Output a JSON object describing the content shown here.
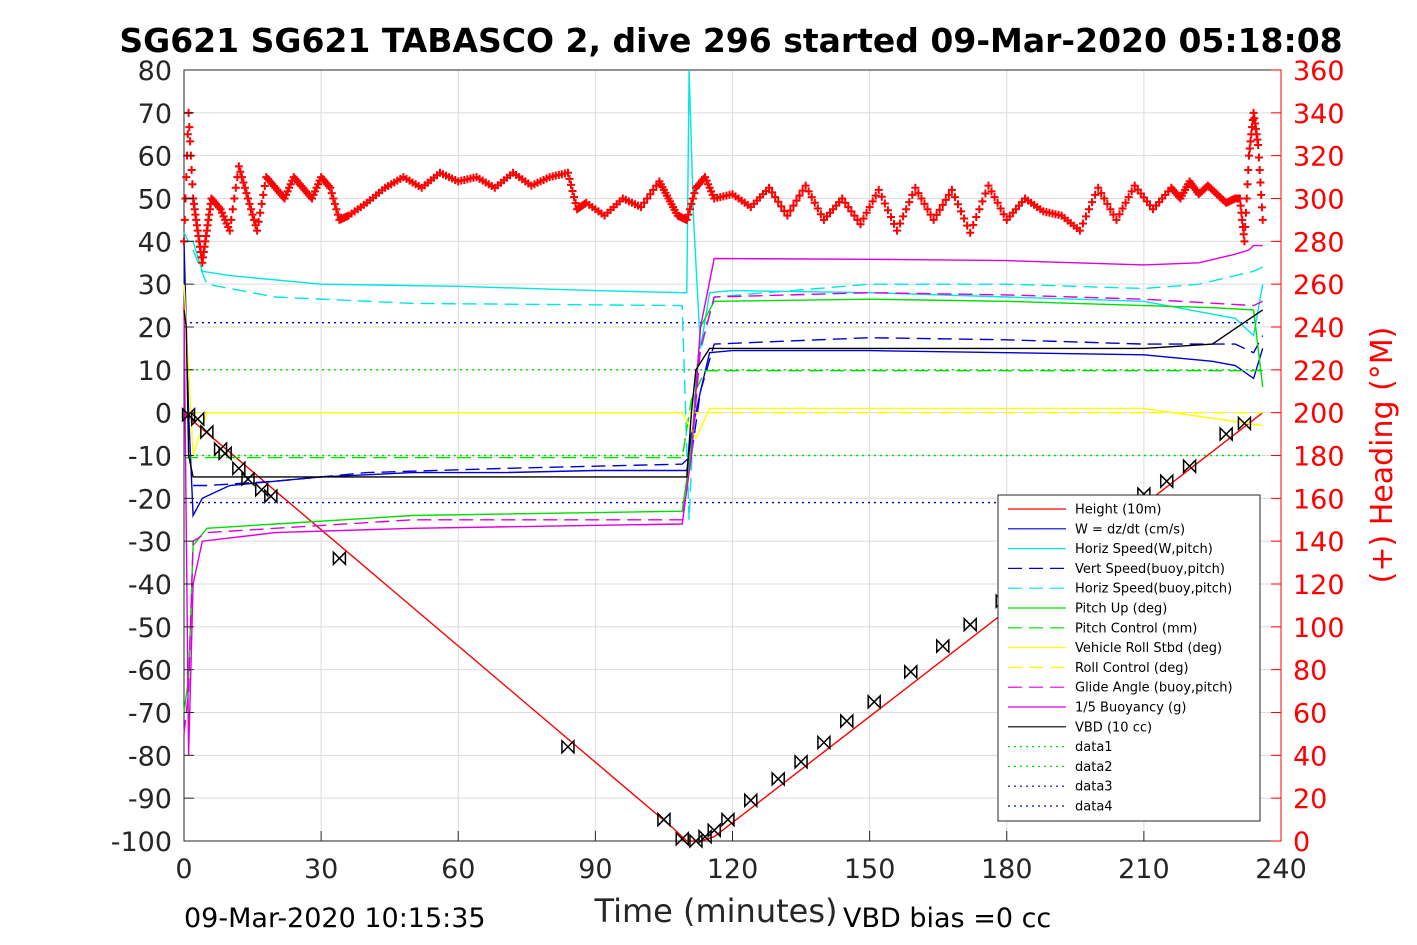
{
  "chart_data": {
    "type": "line",
    "title": "SG621 SG621 TABASCO 2, dive 296 started 09-Mar-2020 05:18:08",
    "xlabel": "Time (minutes)",
    "ylabel_left": "",
    "ylabel_right": "(+) Heading (°M)",
    "xlim": [
      0,
      240
    ],
    "ylim_left": [
      -100,
      80
    ],
    "ylim_right": [
      0,
      360
    ],
    "x_ticks": [
      "0",
      "30",
      "60",
      "90",
      "120",
      "150",
      "180",
      "210",
      "240"
    ],
    "y_ticks_left": [
      "80",
      "70",
      "60",
      "50",
      "40",
      "30",
      "20",
      "10",
      "0",
      "-10",
      "-20",
      "-30",
      "-40",
      "-50",
      "-60",
      "-70",
      "-80",
      "-90",
      "-100"
    ],
    "y_ticks_right": [
      "360",
      "340",
      "320",
      "300",
      "280",
      "260",
      "240",
      "220",
      "200",
      "180",
      "160",
      "140",
      "120",
      "100",
      "80",
      "60",
      "40",
      "20",
      "0"
    ],
    "grid": true,
    "legend_position": "bottom-right",
    "footer_left": "09-Mar-2020 10:15:35",
    "footer_right": "VBD bias =0 cc",
    "colors": {
      "red": "#ff0000",
      "blue": "#0000cc",
      "cyan": "#00e5e5",
      "green": "#00dd00",
      "yellow": "#ffff00",
      "magenta": "#dd00dd",
      "black": "#000000"
    },
    "series": [
      {
        "name": "Height (10m)",
        "color": "#ff0000",
        "style": "solid",
        "x": [
          0,
          2,
          107,
          110,
          113,
          116,
          236
        ],
        "y": [
          0,
          -2,
          -97,
          -100,
          -100,
          -99,
          0
        ]
      },
      {
        "name": "W = dz/dt (cm/s)",
        "color": "#0000cc",
        "style": "solid",
        "x": [
          0,
          1,
          2,
          4,
          10,
          20,
          30,
          50,
          70,
          90,
          110,
          111,
          113,
          115,
          120,
          150,
          180,
          210,
          225,
          230,
          234,
          236
        ],
        "y": [
          40,
          0,
          -24,
          -20,
          -17,
          -16,
          -15,
          -14,
          -14,
          -13.5,
          -13.5,
          -5,
          5,
          14,
          14.5,
          14.5,
          14,
          13.5,
          12,
          11,
          8,
          15
        ]
      },
      {
        "name": "Horiz Speed(W,pitch)",
        "color": "#00e5e5",
        "style": "solid",
        "x": [
          0,
          1,
          2,
          4,
          10,
          30,
          60,
          90,
          109,
          110,
          110.5,
          111.5,
          113,
          115,
          120,
          150,
          180,
          210,
          220,
          230,
          234,
          236
        ],
        "y": [
          42,
          40,
          40,
          33,
          32,
          30,
          29.5,
          28.5,
          28,
          28,
          80,
          45,
          15,
          28,
          28.5,
          28,
          27,
          26,
          24,
          22,
          18,
          30
        ]
      },
      {
        "name": "Vert Speed(buoy,pitch)",
        "color": "#0000cc",
        "style": "dashed",
        "x": [
          2,
          5,
          20,
          40,
          70,
          109,
          111,
          113,
          116,
          150,
          180,
          210,
          222,
          230,
          234,
          236
        ],
        "y": [
          -17,
          -17,
          -16,
          -14,
          -13,
          -12,
          -10,
          5,
          16,
          17.5,
          17,
          16,
          16,
          16,
          14,
          18
        ]
      },
      {
        "name": "Horiz Speed(buoy,pitch)",
        "color": "#00e5e5",
        "style": "dashed",
        "x": [
          2,
          5,
          20,
          50,
          109,
          110.5,
          112,
          116,
          150,
          180,
          210,
          222,
          230,
          234,
          236
        ],
        "y": [
          38,
          30,
          27,
          25.5,
          25,
          -25,
          10,
          27,
          30,
          30,
          29,
          30,
          32,
          33,
          34
        ]
      },
      {
        "name": "Pitch Up (deg)",
        "color": "#00dd00",
        "style": "solid",
        "x": [
          0,
          1,
          2,
          5,
          20,
          50,
          109,
          111,
          113,
          116,
          150,
          180,
          210,
          225,
          234,
          236
        ],
        "y": [
          -70,
          -62,
          -31,
          -27,
          -26,
          -24,
          -23,
          -8,
          20,
          26,
          26.5,
          26,
          25,
          24.5,
          24,
          6
        ]
      },
      {
        "name": "Pitch Control (mm)",
        "color": "#00dd00",
        "style": "dashed",
        "x": [
          0,
          3,
          4,
          109,
          111,
          114,
          115,
          236
        ],
        "y": [
          -10.5,
          -10.5,
          -10.5,
          -10.5,
          3,
          9.8,
          9.8,
          9.8
        ]
      },
      {
        "name": "Vehicle Roll Stbd (deg)",
        "color": "#ffff00",
        "style": "solid",
        "x": [
          0,
          2,
          5,
          10,
          30,
          60,
          90,
          109,
          112,
          115,
          150,
          180,
          210,
          236
        ],
        "y": [
          30,
          -10,
          0,
          0,
          0,
          0,
          0,
          0,
          -6,
          1,
          1,
          1,
          1,
          -3
        ]
      },
      {
        "name": "Roll Control (deg)",
        "color": "#ffff00",
        "style": "dashed",
        "x": [
          0,
          236
        ],
        "y": [
          0,
          0
        ]
      },
      {
        "name": "Glide Angle (buoy,pitch)",
        "color": "#dd00dd",
        "style": "dashed",
        "x": [
          0,
          1,
          2,
          5,
          20,
          50,
          109,
          111,
          113,
          116,
          150,
          180,
          210,
          234,
          236
        ],
        "y": [
          -75,
          -65,
          -30,
          -28,
          -27,
          -25,
          -25,
          -10,
          15,
          27,
          28,
          27.5,
          26.5,
          25,
          26
        ]
      },
      {
        "name": "1/5 Buoyancy (g)",
        "color": "#dd00dd",
        "style": "solid",
        "x": [
          0,
          1,
          2,
          4,
          20,
          50,
          109,
          111,
          113,
          116,
          150,
          180,
          210,
          222,
          230,
          233,
          234,
          236
        ],
        "y": [
          25,
          -80,
          -40,
          -30,
          -28,
          -27,
          -26,
          -10,
          20,
          36,
          35.8,
          35.5,
          34.5,
          35,
          37,
          38,
          39,
          39
        ]
      },
      {
        "name": "VBD (10 cc)",
        "color": "#000000",
        "style": "solid",
        "x": [
          0,
          0.5,
          1,
          2,
          8,
          109,
          110,
          111,
          112,
          115,
          116,
          150,
          180,
          210,
          225,
          236
        ],
        "y": [
          24,
          20,
          -10,
          -15,
          -15,
          -15,
          -15,
          0,
          10,
          15,
          15,
          15,
          15,
          15,
          16,
          24
        ]
      },
      {
        "name": "data1",
        "color": "#00dd00",
        "style": "dotted",
        "x": [
          0,
          236
        ],
        "y": [
          10,
          10
        ]
      },
      {
        "name": "data2",
        "color": "#00dd00",
        "style": "dotted",
        "x": [
          0,
          236
        ],
        "y": [
          -10,
          -10
        ]
      },
      {
        "name": "data3",
        "color": "#0000cc",
        "style": "dotted",
        "x": [
          0,
          236
        ],
        "y": [
          21,
          21
        ]
      },
      {
        "name": "data4",
        "color": "#0000cc",
        "style": "dotted",
        "x": [
          0,
          236
        ],
        "y": [
          -21,
          -21
        ]
      }
    ],
    "heading": {
      "name": "Heading",
      "color": "#ff0000",
      "marker": "+",
      "axis": "right",
      "x": [
        0,
        1,
        2,
        3,
        4,
        5,
        6,
        8,
        10,
        12,
        14,
        16,
        18,
        20,
        22,
        24,
        26,
        28,
        30,
        32,
        34,
        36,
        40,
        44,
        48,
        52,
        56,
        60,
        64,
        68,
        72,
        76,
        80,
        84,
        86,
        88,
        92,
        96,
        100,
        104,
        106,
        108,
        110,
        112,
        114,
        116,
        120,
        124,
        128,
        132,
        136,
        140,
        144,
        148,
        152,
        156,
        160,
        164,
        168,
        172,
        176,
        180,
        184,
        188,
        192,
        196,
        200,
        204,
        208,
        212,
        216,
        218,
        220,
        222,
        224,
        226,
        228,
        230,
        231,
        232,
        233,
        234,
        235,
        236
      ],
      "y": [
        280,
        340,
        300,
        285,
        270,
        285,
        300,
        295,
        285,
        315,
        300,
        285,
        310,
        305,
        300,
        310,
        305,
        300,
        310,
        305,
        290,
        292,
        298,
        305,
        310,
        305,
        312,
        308,
        310,
        305,
        312,
        306,
        310,
        312,
        295,
        298,
        292,
        300,
        296,
        308,
        300,
        292,
        290,
        305,
        310,
        300,
        302,
        296,
        305,
        292,
        306,
        290,
        300,
        288,
        304,
        285,
        305,
        290,
        304,
        284,
        306,
        290,
        300,
        294,
        292,
        285,
        305,
        290,
        306,
        295,
        305,
        300,
        308,
        302,
        306,
        302,
        298,
        300,
        300,
        280,
        320,
        340,
        325,
        290
      ]
    },
    "height_markers": {
      "x": [
        1,
        3,
        5,
        8,
        9,
        12,
        14,
        17,
        19,
        34,
        84,
        105,
        109,
        112,
        114,
        116,
        119,
        124,
        130,
        135,
        140,
        145,
        151,
        159,
        166,
        172,
        179,
        210,
        215,
        220,
        228,
        232
      ],
      "y": [
        -0.5,
        -1.5,
        -4.5,
        -8.5,
        -9.5,
        -13,
        -15.5,
        -18,
        -19.5,
        -34,
        -78,
        -95,
        -99.5,
        -100,
        -99,
        -97.5,
        -95,
        -90.5,
        -85.5,
        -81.5,
        -77,
        -72,
        -67.5,
        -60.5,
        -54.5,
        -49.5,
        -44,
        -19,
        -16,
        -12.5,
        -5,
        -2.5
      ]
    }
  }
}
